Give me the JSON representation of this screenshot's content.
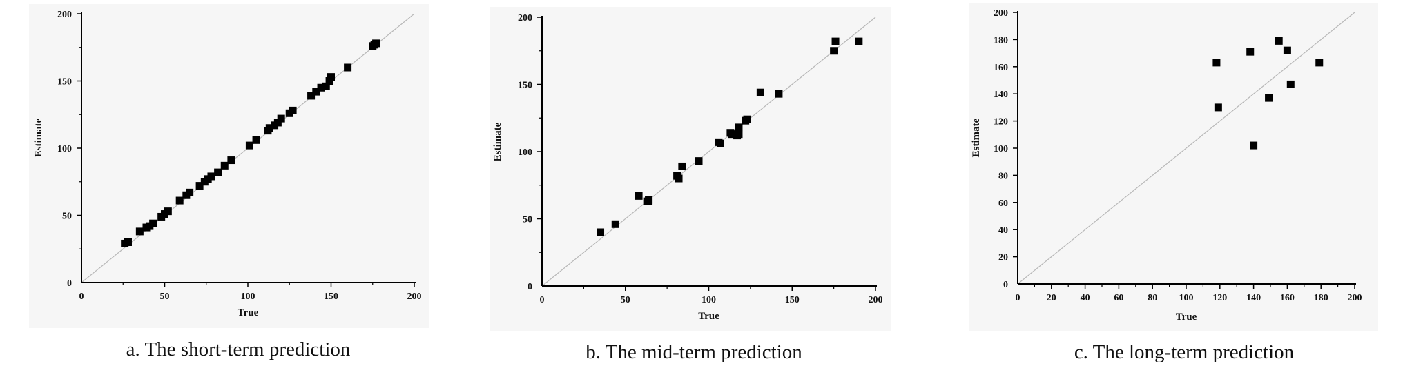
{
  "chart_data": [
    {
      "type": "scatter",
      "caption": "a. The short-term prediction",
      "xlabel": "True",
      "ylabel": "Estimate",
      "xlim": [
        0,
        200
      ],
      "ylim": [
        0,
        200
      ],
      "xticks": [
        0,
        50,
        100,
        150,
        200
      ],
      "yticks": [
        0,
        50,
        100,
        150,
        200
      ],
      "grid": false,
      "reference_line": "y = x",
      "x": [
        26,
        28,
        35,
        39,
        41,
        43,
        48,
        50,
        52,
        59,
        63,
        65,
        71,
        74,
        76,
        78,
        82,
        86,
        90,
        101,
        105,
        112,
        113,
        116,
        118,
        120,
        125,
        127,
        138,
        141,
        144,
        147,
        149,
        150,
        160,
        175,
        176,
        177
      ],
      "y": [
        29,
        30,
        38,
        41,
        42,
        44,
        49,
        51,
        53,
        61,
        65,
        67,
        72,
        75,
        77,
        79,
        82,
        87,
        91,
        102,
        106,
        113,
        115,
        117,
        119,
        122,
        126,
        128,
        139,
        142,
        145,
        146,
        150,
        153,
        160,
        176,
        177,
        178
      ]
    },
    {
      "type": "scatter",
      "caption": "b. The mid-term prediction",
      "xlabel": "True",
      "ylabel": "Estimate",
      "xlim": [
        0,
        200
      ],
      "ylim": [
        0,
        200
      ],
      "xticks": [
        0,
        50,
        100,
        150,
        200
      ],
      "yticks": [
        0,
        50,
        100,
        150,
        200
      ],
      "grid": false,
      "reference_line": "y = x",
      "x": [
        35,
        44,
        58,
        63,
        64,
        64,
        81,
        82,
        84,
        94,
        106,
        107,
        113,
        114,
        117,
        118,
        118,
        122,
        123,
        131,
        142,
        175,
        176,
        190
      ],
      "y": [
        40,
        46,
        67,
        63,
        63,
        64,
        82,
        80,
        89,
        93,
        107,
        106,
        114,
        113,
        112,
        113,
        118,
        123,
        124,
        144,
        143,
        175,
        182,
        182
      ]
    },
    {
      "type": "scatter",
      "caption": "c. The long-term prediction",
      "xlabel": "True",
      "ylabel": "Estimate",
      "xlim": [
        0,
        200
      ],
      "ylim": [
        0,
        200
      ],
      "xticks": [
        0,
        20,
        40,
        60,
        80,
        100,
        120,
        140,
        160,
        180,
        200
      ],
      "yticks": [
        0,
        20,
        40,
        60,
        80,
        100,
        120,
        140,
        160,
        180,
        200
      ],
      "grid": false,
      "reference_line": "y = x",
      "x": [
        118,
        119,
        138,
        140,
        149,
        155,
        160,
        162,
        179
      ],
      "y": [
        163,
        130,
        171,
        102,
        137,
        179,
        172,
        147,
        163
      ]
    }
  ]
}
